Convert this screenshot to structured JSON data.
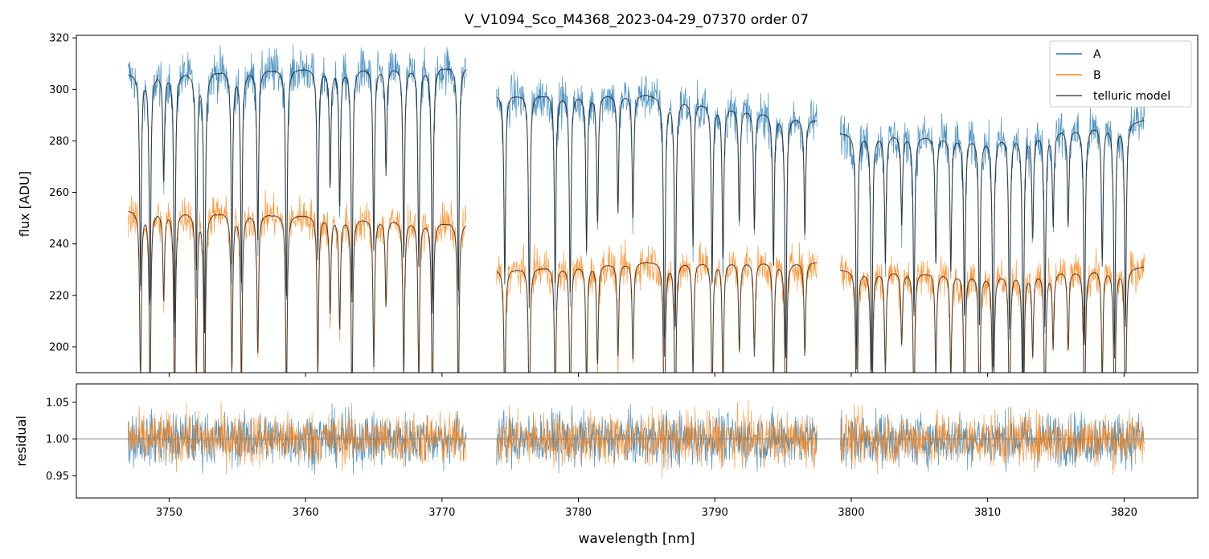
{
  "title": "V_V1094_Sco_M4368_2023-04-29_07370  order 07",
  "colors": {
    "A": "#1f77b4",
    "B": "#ff7f0e",
    "model": "#000000",
    "residual_ref": "#777777"
  },
  "chart_data": [
    {
      "type": "line",
      "panel": "flux",
      "xlabel": "",
      "ylabel": "flux [ADU]",
      "xlim": [
        3743.2,
        3825.4
      ],
      "ylim": [
        190,
        321
      ],
      "xticks": [
        3750,
        3760,
        3770,
        3780,
        3790,
        3800,
        3810,
        3820
      ],
      "yticks": [
        200,
        220,
        240,
        260,
        280,
        300,
        320
      ],
      "legend": {
        "position": "top-right",
        "entries": [
          "A",
          "B",
          "telluric model"
        ]
      },
      "segments": [
        [
          3747.0,
          3771.8
        ],
        [
          3774.0,
          3797.5
        ],
        [
          3799.2,
          3821.5
        ]
      ],
      "series": [
        {
          "name": "A",
          "continuum": [
            [
              3747.0,
              306
            ],
            [
              3760,
              308
            ],
            [
              3771.8,
              309
            ],
            [
              3774.0,
              298
            ],
            [
              3785,
              298
            ],
            [
              3797.5,
              288
            ],
            [
              3799.2,
              283
            ],
            [
              3810,
              281
            ],
            [
              3821.5,
              288
            ]
          ]
        },
        {
          "name": "B",
          "continuum": [
            [
              3747.0,
              253
            ],
            [
              3760,
              251
            ],
            [
              3771.8,
              248
            ],
            [
              3774.0,
              230
            ],
            [
              3785,
              233
            ],
            [
              3797.5,
              233
            ],
            [
              3799.2,
              230
            ],
            [
              3810,
              228
            ],
            [
              3821.5,
              231
            ]
          ]
        },
        {
          "name": "telluric model",
          "absorption_lines_nm": [
            3747.9,
            3748.6,
            3749.6,
            3750.4,
            3752.0,
            3752.6,
            3754.6,
            3755.3,
            3756.5,
            3758.6,
            3760.9,
            3761.8,
            3762.5,
            3763.4,
            3765.0,
            3765.9,
            3767.2,
            3768.3,
            3769.3,
            3771.2,
            3774.6,
            3776.4,
            3778.3,
            3779.4,
            3780.6,
            3781.4,
            3782.9,
            3784.0,
            3786.3,
            3787.1,
            3788.4,
            3789.8,
            3790.6,
            3791.8,
            3792.9,
            3794.3,
            3795.2,
            3796.6,
            3800.4,
            3801.5,
            3802.5,
            3803.7,
            3804.6,
            3806.2,
            3807.3,
            3808.3,
            3809.4,
            3810.4,
            3811.6,
            3812.6,
            3813.3,
            3814.2,
            3814.8,
            3815.9,
            3817.1,
            3818.4,
            3819.3,
            3820.1
          ]
        }
      ]
    },
    {
      "type": "line",
      "panel": "residual",
      "xlabel": "wavelength [nm]",
      "ylabel": "residual",
      "xlim": [
        3743.2,
        3825.4
      ],
      "ylim": [
        0.92,
        1.075
      ],
      "xticks": [
        3750,
        3760,
        3770,
        3780,
        3790,
        3800,
        3810,
        3820
      ],
      "yticks": [
        0.95,
        1.0,
        1.05
      ],
      "reference_line": 1.0,
      "series": [
        {
          "name": "A",
          "center": 1.0,
          "scatter": 0.03
        },
        {
          "name": "B",
          "center": 1.0,
          "scatter": 0.03
        }
      ]
    }
  ]
}
